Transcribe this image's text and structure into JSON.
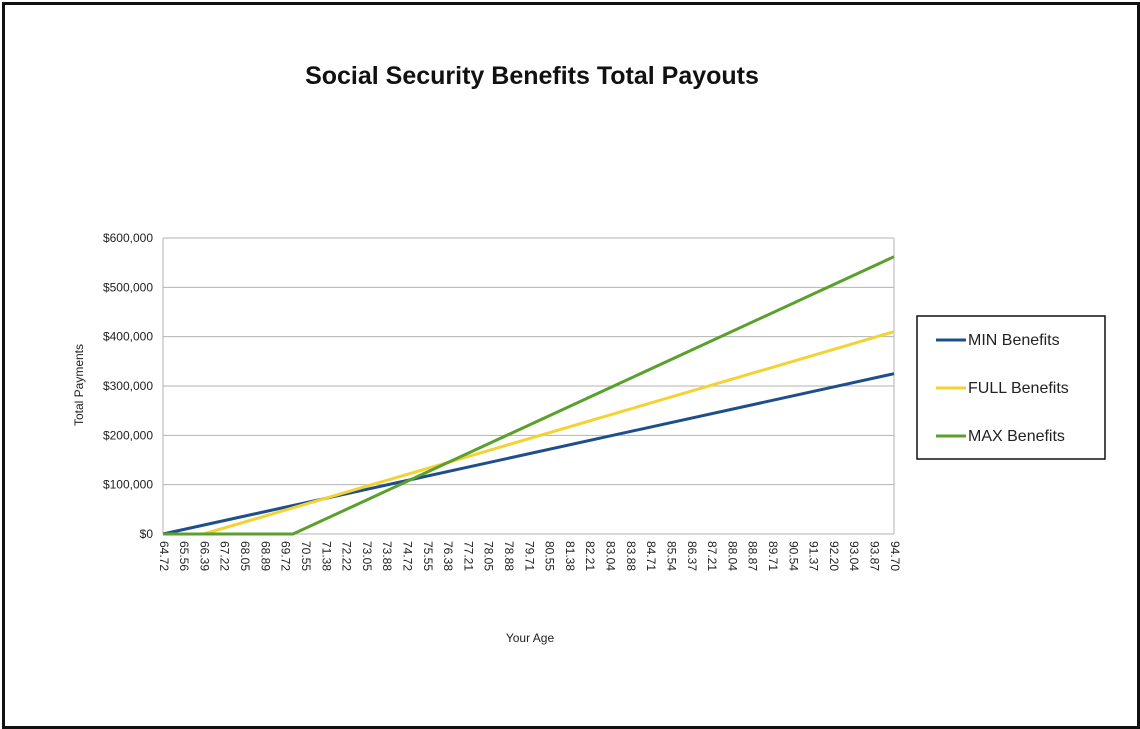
{
  "chart_data": {
    "type": "line",
    "title": "Social Security Benefits Total Payouts",
    "xlabel": "Your Age",
    "ylabel": "Total Payments",
    "ylim": [
      0,
      600000
    ],
    "yticks": [
      0,
      100000,
      200000,
      300000,
      400000,
      500000,
      600000
    ],
    "ytick_labels": [
      "$0",
      "$100,000",
      "$200,000",
      "$300,000",
      "$400,000",
      "$500,000",
      "$600,000"
    ],
    "xlim": [
      64.72,
      94.7
    ],
    "xtick_labels": [
      "64.72",
      "65.56",
      "66.39",
      "67.22",
      "68.05",
      "68.89",
      "69.72",
      "70.55",
      "71.38",
      "72.22",
      "73.05",
      "73.88",
      "74.72",
      "75.55",
      "76.38",
      "77.21",
      "78.05",
      "78.88",
      "79.71",
      "80.55",
      "81.38",
      "82.21",
      "83.04",
      "83.88",
      "84.71",
      "85.54",
      "86.37",
      "87.21",
      "88.04",
      "88.87",
      "89.71",
      "90.54",
      "91.37",
      "92.20",
      "93.04",
      "93.87",
      "94.70"
    ],
    "grid": true,
    "legend_position": "right",
    "series": [
      {
        "name": "MIN Benefits",
        "color": "#1f4e8c",
        "points": [
          [
            64.72,
            0
          ],
          [
            94.7,
            325000
          ]
        ]
      },
      {
        "name": "FULL Benefits",
        "color": "#f5d234",
        "points": [
          [
            64.72,
            0
          ],
          [
            66.39,
            0
          ],
          [
            94.7,
            410000
          ]
        ]
      },
      {
        "name": "MAX Benefits",
        "color": "#5aa02c",
        "points": [
          [
            64.72,
            0
          ],
          [
            70.05,
            0
          ],
          [
            94.7,
            562000
          ]
        ]
      }
    ]
  }
}
